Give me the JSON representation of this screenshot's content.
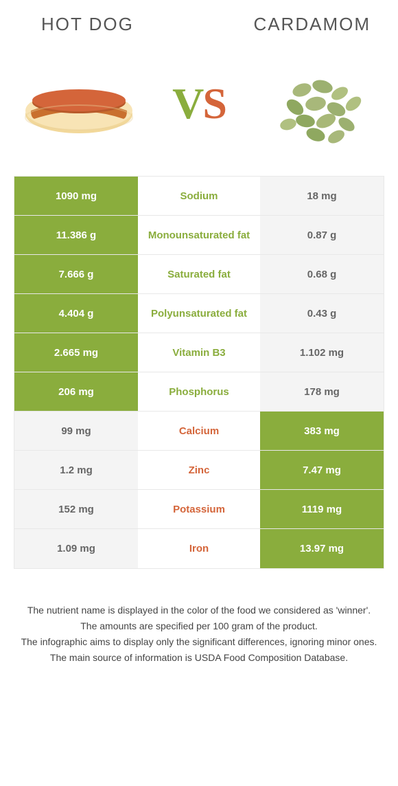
{
  "title_left": "HOT DOG",
  "title_right": "CARDAMOM",
  "vs_label_v": "V",
  "vs_label_s": "S",
  "colors": {
    "green": "#8aad3d",
    "orange": "#d4653a",
    "gray_bg": "#f4f4f4",
    "gray_text": "#666666",
    "border": "#e8e8e8",
    "background": "#ffffff"
  },
  "rows": [
    {
      "left": "1090 mg",
      "label": "Sodium",
      "right": "18 mg",
      "winner": "left"
    },
    {
      "left": "11.386 g",
      "label": "Monounsaturated fat",
      "right": "0.87 g",
      "winner": "left"
    },
    {
      "left": "7.666 g",
      "label": "Saturated fat",
      "right": "0.68 g",
      "winner": "left"
    },
    {
      "left": "4.404 g",
      "label": "Polyunsaturated fat",
      "right": "0.43 g",
      "winner": "left"
    },
    {
      "left": "2.665 mg",
      "label": "Vitamin B3",
      "right": "1.102 mg",
      "winner": "left"
    },
    {
      "left": "206 mg",
      "label": "Phosphorus",
      "right": "178 mg",
      "winner": "left"
    },
    {
      "left": "99 mg",
      "label": "Calcium",
      "right": "383 mg",
      "winner": "right"
    },
    {
      "left": "1.2 mg",
      "label": "Zinc",
      "right": "7.47 mg",
      "winner": "right"
    },
    {
      "left": "152 mg",
      "label": "Potassium",
      "right": "1119 mg",
      "winner": "right"
    },
    {
      "left": "1.09 mg",
      "label": "Iron",
      "right": "13.97 mg",
      "winner": "right"
    }
  ],
  "footer": [
    "The nutrient name is displayed in the color of the food we considered as 'winner'.",
    "The amounts are specified per 100 gram of the product.",
    "The infographic aims to display only the significant differences, ignoring minor ones.",
    "The main source of information is USDA Food Composition Database."
  ]
}
